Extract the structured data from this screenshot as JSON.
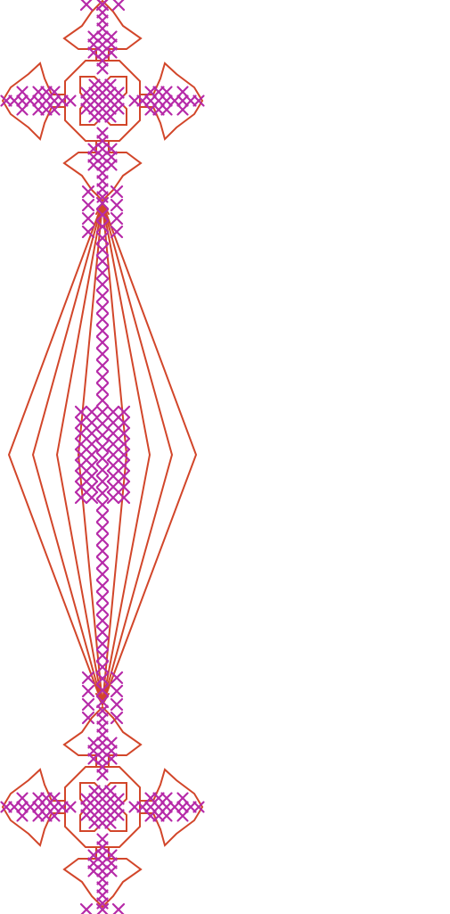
{
  "pattern": {
    "colors": {
      "background": "#ffffff",
      "outline": "#d2462a",
      "stitch": "#b62aa8"
    },
    "motifs": [
      "cross-stitch-medallion",
      "lens-diamond-outlines",
      "cross-stitch-medallion"
    ]
  }
}
